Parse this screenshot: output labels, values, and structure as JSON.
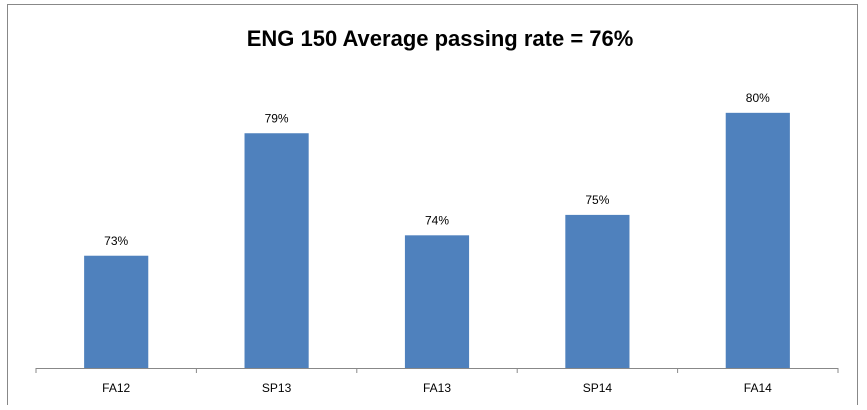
{
  "chart_data": {
    "type": "bar",
    "title": "ENG 150 Average passing rate = 76%",
    "categories": [
      "FA12",
      "SP13",
      "FA13",
      "SP14",
      "FA14"
    ],
    "values": [
      73,
      79,
      74,
      75,
      80
    ],
    "value_labels": [
      "73%",
      "79%",
      "74%",
      "75%",
      "80%"
    ],
    "color": "#4f81bd",
    "ylim": [
      67.5,
      82
    ]
  }
}
